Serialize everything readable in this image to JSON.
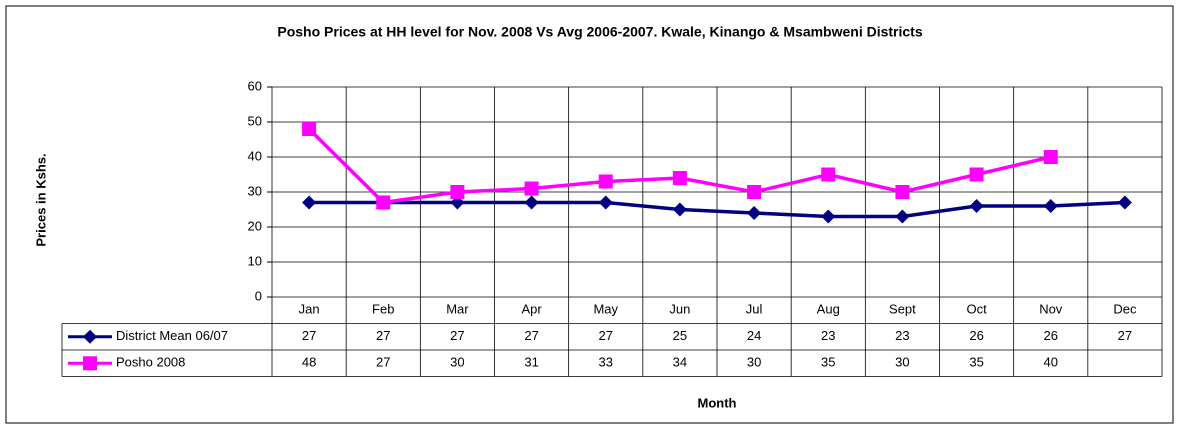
{
  "chart_data": {
    "type": "line",
    "title": "Posho Prices at HH level for Nov. 2008 Vs Avg 2006-2007. Kwale, Kinango & Msambweni Districts",
    "ylabel": "Prices in Kshs.",
    "xlabel": "Month",
    "categories": [
      "Jan",
      "Feb",
      "Mar",
      "Apr",
      "May",
      "Jun",
      "Jul",
      "Aug",
      "Sept",
      "Oct",
      "Nov",
      "Dec"
    ],
    "series": [
      {
        "name": "District Mean 06/07",
        "color": "#000080",
        "marker": "diamond",
        "values": [
          27,
          27,
          27,
          27,
          27,
          25,
          24,
          23,
          23,
          26,
          26,
          27
        ]
      },
      {
        "name": "Posho 2008",
        "color": "#ff00ff",
        "marker": "square",
        "values": [
          48,
          27,
          30,
          31,
          33,
          34,
          30,
          35,
          30,
          35,
          40,
          null
        ]
      }
    ],
    "ylim": [
      0,
      60
    ],
    "yticks": [
      0,
      10,
      20,
      30,
      40,
      50,
      60
    ],
    "grid": true,
    "data_table": true
  }
}
